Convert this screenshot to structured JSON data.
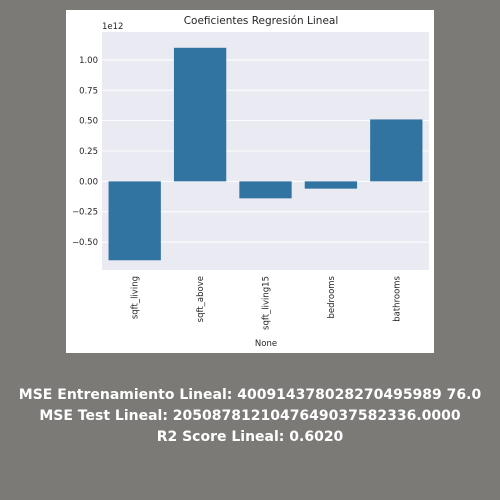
{
  "chart_data": {
    "type": "bar",
    "title": "Coeficientes Regresión Lineal",
    "xlabel": "None",
    "ylabel": "",
    "scale_label": "1e12",
    "categories": [
      "sqft_living",
      "sqft_above",
      "sqft_living15",
      "bedrooms",
      "bathrooms"
    ],
    "values": [
      -0.65,
      1.1,
      -0.14,
      -0.06,
      0.51
    ],
    "ylim": [
      -0.73,
      1.23
    ],
    "yticks": [
      -0.5,
      -0.25,
      0.0,
      0.25,
      0.5,
      0.75,
      1.0
    ],
    "ytick_labels": [
      "−0.50",
      "−0.25",
      "0.00",
      "0.25",
      "0.50",
      "0.75",
      "1.00"
    ],
    "grid": true,
    "bar_color": "#3274a1",
    "plot_background": "#eaeaf2"
  },
  "stats": {
    "mse_train": "MSE Entrenamiento Lineal: 400914378028270495989 76.0",
    "mse_test": "MSE Test Lineal: 2050878121047649037582336.0000",
    "r2": "R2 Score Lineal: 0.6020"
  }
}
